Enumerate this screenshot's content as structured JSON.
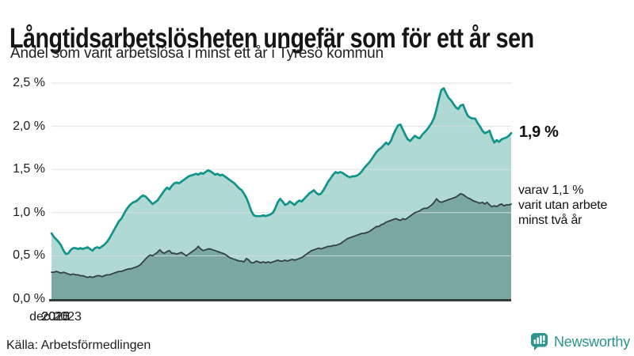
{
  "chart_data": {
    "type": "area",
    "title": "Långtidsarbetslösheten ungefär som för ett år sen",
    "subtitle": "Andel som varit arbetslösa i minst ett år i Tyresö kommun",
    "source": "Källa: Arbetsförmedlingen",
    "unit": "%",
    "grid": true,
    "legend_position": "right-annotations",
    "ylim": [
      0,
      2.5
    ],
    "y_tick_labels": [
      "2,5 %",
      "2,0 %",
      "1,5 %",
      "1,0 %",
      "0,5 %",
      "0,0 %"
    ],
    "x_tick_labels": [
      "2010",
      "2015",
      "2020",
      "dec 2023"
    ],
    "x_range": [
      "jan 2008",
      "dec 2023"
    ],
    "x_interval": "monthly",
    "series": [
      {
        "name": "Arbetslösa minst ett år",
        "color": "#10948a",
        "fill": "#b0d9d3",
        "end_label": "1,9 %",
        "values": [
          0.76,
          0.72,
          0.69,
          0.66,
          0.62,
          0.56,
          0.52,
          0.53,
          0.57,
          0.59,
          0.59,
          0.58,
          0.59,
          0.58,
          0.59,
          0.6,
          0.58,
          0.56,
          0.59,
          0.6,
          0.59,
          0.61,
          0.63,
          0.66,
          0.7,
          0.75,
          0.8,
          0.85,
          0.9,
          0.93,
          0.98,
          1.03,
          1.07,
          1.1,
          1.12,
          1.13,
          1.15,
          1.18,
          1.2,
          1.19,
          1.16,
          1.13,
          1.1,
          1.12,
          1.14,
          1.18,
          1.22,
          1.26,
          1.29,
          1.27,
          1.31,
          1.34,
          1.35,
          1.34,
          1.36,
          1.38,
          1.4,
          1.42,
          1.43,
          1.44,
          1.45,
          1.44,
          1.46,
          1.45,
          1.47,
          1.49,
          1.48,
          1.46,
          1.44,
          1.45,
          1.43,
          1.44,
          1.42,
          1.4,
          1.38,
          1.36,
          1.34,
          1.31,
          1.28,
          1.26,
          1.22,
          1.17,
          1.1,
          1.02,
          0.97,
          0.96,
          0.96,
          0.96,
          0.97,
          0.96,
          0.97,
          0.98,
          1.0,
          1.05,
          1.12,
          1.16,
          1.13,
          1.09,
          1.1,
          1.13,
          1.11,
          1.09,
          1.12,
          1.14,
          1.13,
          1.16,
          1.19,
          1.22,
          1.24,
          1.26,
          1.23,
          1.21,
          1.22,
          1.26,
          1.31,
          1.36,
          1.4,
          1.44,
          1.47,
          1.46,
          1.47,
          1.46,
          1.44,
          1.42,
          1.41,
          1.42,
          1.42,
          1.43,
          1.45,
          1.48,
          1.52,
          1.55,
          1.58,
          1.62,
          1.66,
          1.7,
          1.73,
          1.75,
          1.78,
          1.81,
          1.79,
          1.83,
          1.9,
          1.96,
          2.01,
          2.02,
          1.96,
          1.9,
          1.85,
          1.83,
          1.86,
          1.89,
          1.87,
          1.86,
          1.9,
          1.93,
          1.96,
          2.0,
          2.04,
          2.1,
          2.2,
          2.32,
          2.42,
          2.44,
          2.38,
          2.33,
          2.3,
          2.26,
          2.22,
          2.2,
          2.24,
          2.25,
          2.18,
          2.12,
          2.1,
          2.09,
          2.09,
          2.04,
          2.0,
          1.95,
          1.92,
          1.93,
          1.95,
          1.87,
          1.81,
          1.84,
          1.82,
          1.85,
          1.86,
          1.87,
          1.89,
          1.92
        ]
      },
      {
        "name": "Varav utan arbete minst två år",
        "color": "#33413f",
        "fill": "#7aa8a1",
        "annotation": "varav 1,1 %\nvarit utan arbete\nminst två år",
        "values": [
          0.31,
          0.31,
          0.32,
          0.31,
          0.3,
          0.31,
          0.3,
          0.29,
          0.28,
          0.29,
          0.28,
          0.28,
          0.27,
          0.27,
          0.26,
          0.25,
          0.26,
          0.25,
          0.26,
          0.27,
          0.27,
          0.26,
          0.27,
          0.28,
          0.28,
          0.29,
          0.3,
          0.31,
          0.32,
          0.32,
          0.33,
          0.34,
          0.35,
          0.35,
          0.36,
          0.37,
          0.38,
          0.4,
          0.43,
          0.46,
          0.49,
          0.51,
          0.5,
          0.52,
          0.54,
          0.57,
          0.54,
          0.53,
          0.55,
          0.56,
          0.53,
          0.53,
          0.52,
          0.53,
          0.54,
          0.52,
          0.5,
          0.52,
          0.54,
          0.56,
          0.58,
          0.61,
          0.58,
          0.56,
          0.57,
          0.58,
          0.58,
          0.57,
          0.56,
          0.55,
          0.54,
          0.53,
          0.52,
          0.5,
          0.48,
          0.47,
          0.46,
          0.45,
          0.44,
          0.44,
          0.43,
          0.47,
          0.45,
          0.42,
          0.42,
          0.44,
          0.43,
          0.42,
          0.43,
          0.42,
          0.43,
          0.42,
          0.43,
          0.44,
          0.45,
          0.44,
          0.44,
          0.45,
          0.44,
          0.45,
          0.46,
          0.45,
          0.46,
          0.47,
          0.48,
          0.5,
          0.52,
          0.54,
          0.56,
          0.57,
          0.58,
          0.59,
          0.58,
          0.59,
          0.6,
          0.61,
          0.61,
          0.62,
          0.62,
          0.63,
          0.64,
          0.66,
          0.68,
          0.7,
          0.71,
          0.72,
          0.73,
          0.74,
          0.75,
          0.76,
          0.76,
          0.77,
          0.78,
          0.8,
          0.82,
          0.84,
          0.84,
          0.86,
          0.87,
          0.89,
          0.9,
          0.91,
          0.92,
          0.93,
          0.92,
          0.91,
          0.93,
          0.92,
          0.94,
          0.96,
          0.98,
          1.0,
          1.01,
          1.02,
          1.04,
          1.05,
          1.05,
          1.07,
          1.09,
          1.12,
          1.16,
          1.13,
          1.12,
          1.13,
          1.14,
          1.15,
          1.16,
          1.17,
          1.18,
          1.2,
          1.22,
          1.21,
          1.19,
          1.17,
          1.16,
          1.14,
          1.13,
          1.12,
          1.11,
          1.12,
          1.1,
          1.12,
          1.09,
          1.07,
          1.08,
          1.07,
          1.09,
          1.1,
          1.08,
          1.09,
          1.09,
          1.1
        ]
      }
    ],
    "colors": {
      "accent_teal": "#10948a",
      "light_fill": "#b0d9d3",
      "dark_fill": "#7aa8a1",
      "dark_line": "#33413f",
      "gridline": "#d9dddf",
      "axis": "#333d3f"
    }
  },
  "brand": {
    "name": "Newsworthy"
  }
}
